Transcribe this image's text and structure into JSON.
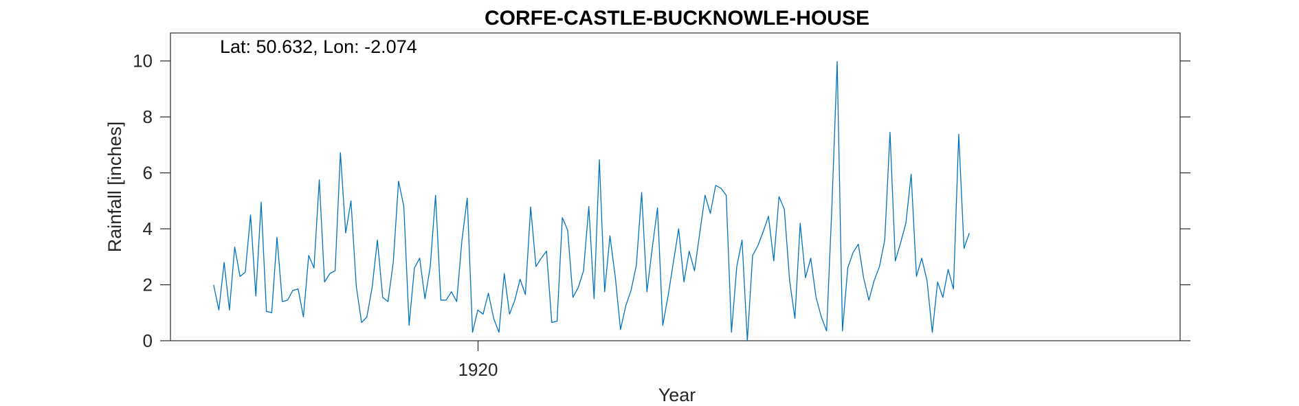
{
  "chart_data": {
    "type": "line",
    "title": "CORFE-CASTLE-BUCKNOWLE-HOUSE",
    "annotation": "Lat: 50.632, Lon: -2.074",
    "xlabel": "Year",
    "ylabel": "Rainfall [inches]",
    "x_ticks": [
      {
        "value": 1920,
        "label": "1920"
      }
    ],
    "y_ticks": [
      {
        "value": 0,
        "label": "0"
      },
      {
        "value": 2,
        "label": "2"
      },
      {
        "value": 4,
        "label": "4"
      },
      {
        "value": 6,
        "label": "6"
      },
      {
        "value": 8,
        "label": "8"
      },
      {
        "value": 10,
        "label": "10"
      }
    ],
    "xlim": [
      1915.15,
      1931.07
    ],
    "ylim": [
      0,
      11
    ],
    "grid": false,
    "line_color": "#0072bd",
    "series": [
      {
        "x_start": 1915.83,
        "x_step": 0.08333,
        "values": [
          2.0,
          1.1,
          2.8,
          1.1,
          3.35,
          2.3,
          2.45,
          4.5,
          1.6,
          4.95,
          1.05,
          1.0,
          3.7,
          1.4,
          1.45,
          1.8,
          1.85,
          0.85,
          3.05,
          2.6,
          5.75,
          2.1,
          2.4,
          2.5,
          6.72,
          3.85,
          5.0,
          1.95,
          0.65,
          0.85,
          1.9,
          3.6,
          1.55,
          1.4,
          2.8,
          5.7,
          4.8,
          0.55,
          2.6,
          2.95,
          1.5,
          2.65,
          5.2,
          1.45,
          1.45,
          1.75,
          1.4,
          3.6,
          5.1,
          0.3,
          1.1,
          0.95,
          1.7,
          0.8,
          0.3,
          2.4,
          0.95,
          1.45,
          2.2,
          1.65,
          4.78,
          2.65,
          2.95,
          3.2,
          0.65,
          0.7,
          4.4,
          3.95,
          1.55,
          1.9,
          2.5,
          4.8,
          1.5,
          6.47,
          1.75,
          3.75,
          2.3,
          0.4,
          1.25,
          1.8,
          2.7,
          5.3,
          1.75,
          3.3,
          4.75,
          0.55,
          1.6,
          2.8,
          4.0,
          2.1,
          3.2,
          2.5,
          3.85,
          5.2,
          4.55,
          5.55,
          5.45,
          5.2,
          0.3,
          2.65,
          3.6,
          0.0,
          3.05,
          3.4,
          3.9,
          4.45,
          2.85,
          5.15,
          4.7,
          2.15,
          0.8,
          4.2,
          2.25,
          2.95,
          1.55,
          0.85,
          0.35,
          4.8,
          9.98,
          0.35,
          2.6,
          3.15,
          3.45,
          2.25,
          1.45,
          2.15,
          2.65,
          3.6,
          7.45,
          2.85,
          3.5,
          4.2,
          5.95,
          2.3,
          2.95,
          2.15,
          0.3,
          2.1,
          1.55,
          2.55,
          1.85,
          7.38,
          3.3,
          3.85
        ]
      }
    ]
  }
}
